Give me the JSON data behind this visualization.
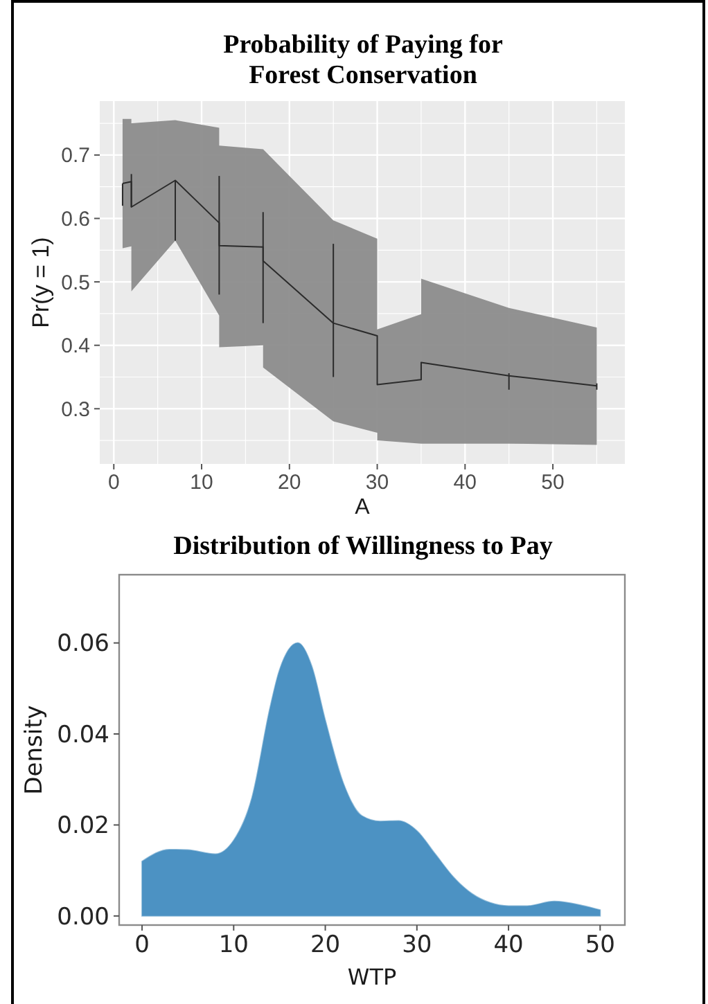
{
  "chart_data": [
    {
      "type": "line",
      "title": "Probability of Paying for\nForest Conservation",
      "xlabel": "A",
      "ylabel": "Pr(y = 1)",
      "series": [
        {
          "color": "#2b2b2b",
          "x": [
            1,
            2,
            2,
            7,
            12,
            12,
            17,
            17,
            25,
            30,
            30,
            35,
            35,
            45,
            55
          ],
          "values": [
            0.655,
            0.658,
            0.618,
            0.66,
            0.593,
            0.557,
            0.555,
            0.533,
            0.435,
            0.415,
            0.338,
            0.346,
            0.373,
            0.352,
            0.336
          ],
          "upper": [
            0.757,
            0.757,
            0.75,
            0.755,
            0.743,
            0.715,
            0.709,
            0.709,
            0.597,
            0.568,
            0.425,
            0.449,
            0.505,
            0.459,
            0.428
          ],
          "lower": [
            0.553,
            0.556,
            0.485,
            0.565,
            0.447,
            0.397,
            0.4,
            0.365,
            0.28,
            0.262,
            0.25,
            0.245,
            0.245,
            0.245,
            0.243
          ],
          "errors": [
            [
              0.62,
              0.655
            ],
            null,
            [
              0.618,
              0.67
            ],
            [
              0.565,
              0.66
            ],
            [
              0.48,
              0.667
            ],
            null,
            [
              0.435,
              0.61
            ],
            null,
            [
              0.35,
              0.56
            ],
            null,
            null,
            null,
            null,
            [
              0.33,
              0.356
            ],
            [
              0.33,
              0.34
            ]
          ]
        }
      ],
      "xlim": [
        -1.6,
        58.2
      ],
      "ylim": [
        0.213,
        0.785
      ],
      "xticks": [
        0,
        {
          "value": 5,
          "label": null
        },
        10,
        {
          "value": 15,
          "label": null
        },
        20,
        {
          "value": 25,
          "label": null
        },
        30,
        {
          "value": 35,
          "label": null
        },
        40,
        {
          "value": 45,
          "label": null
        },
        50,
        {
          "value": 55,
          "label": null
        }
      ],
      "yticks": [
        {
          "value": 0.25,
          "label": null
        },
        0.3,
        {
          "value": 0.35,
          "label": null
        },
        0.4,
        {
          "value": 0.45,
          "label": null
        },
        0.5,
        {
          "value": 0.55,
          "label": null
        },
        0.6,
        {
          "value": 0.65,
          "label": null
        },
        0.7,
        {
          "value": 0.75,
          "label": null
        }
      ],
      "grid": true
    },
    {
      "type": "area",
      "title": "Distribution of Willingness to Pay",
      "xlabel": "WTP",
      "ylabel": "Density",
      "series": [
        {
          "color": "#4c92c3",
          "x": [
            0,
            3,
            5,
            8,
            10,
            12,
            14,
            15,
            17,
            18.5,
            20,
            22,
            24,
            26,
            28,
            30,
            32,
            34,
            36,
            38,
            40,
            42,
            45,
            48,
            50
          ],
          "values": [
            0.012,
            0.0146,
            0.0145,
            0.0136,
            0.0166,
            0.026,
            0.046,
            0.054,
            0.06,
            0.055,
            0.043,
            0.029,
            0.022,
            0.0208,
            0.0209,
            0.0187,
            0.0136,
            0.0085,
            0.0049,
            0.0029,
            0.0022,
            0.0022,
            0.0032,
            0.0023,
            0.0013
          ]
        }
      ],
      "xlim": [
        -2.5,
        52.7
      ],
      "ylim": [
        -0.002,
        0.075
      ],
      "xticks": [
        0,
        10,
        20,
        30,
        40,
        50
      ],
      "yticks": [
        {
          "value": 0,
          "label": "0.00"
        },
        {
          "value": 0.02,
          "label": "0.02"
        },
        {
          "value": 0.04,
          "label": "0.04"
        },
        {
          "value": 0.06,
          "label": "0.06"
        }
      ],
      "grid": false
    }
  ]
}
